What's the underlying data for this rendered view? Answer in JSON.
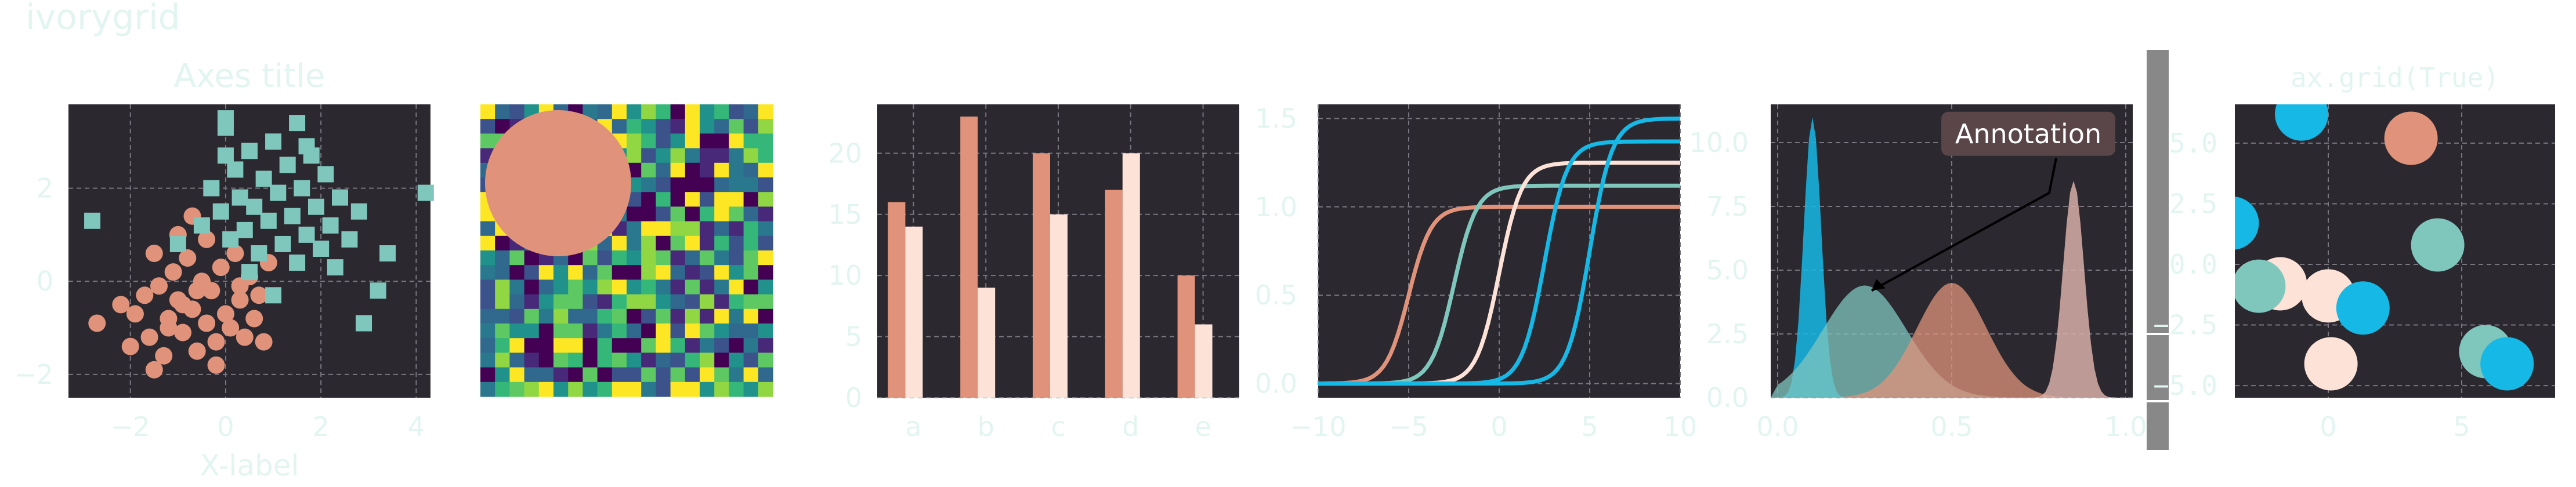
{
  "figure": {
    "suptitle": "ivorygrid"
  },
  "colors": {
    "bg": "#2b2830",
    "grid": "#7a7680",
    "text": "#e3f5f1",
    "peach": "#e0937a",
    "teal": "#7fc6bd",
    "cream": "#fde2d8",
    "cyan": "#16b8e6",
    "rose": "#d8aea8"
  },
  "chart_data": [
    {
      "type": "scatter",
      "title": "Axes title",
      "xlabel": "X-label",
      "ylabel": "",
      "xlim": [
        -3.3,
        4.3
      ],
      "ylim": [
        -2.5,
        3.8
      ],
      "xticks": [
        "−2",
        "0",
        "2",
        "4"
      ],
      "xtick_values": [
        -2,
        0,
        2,
        4
      ],
      "yticks": [
        "−2",
        "0",
        "2"
      ],
      "ytick_values": [
        -2,
        0,
        2
      ],
      "grid": true,
      "series": [
        {
          "marker": "circle",
          "points": [
            [
              -2.7,
              -0.9
            ],
            [
              -2.2,
              -0.5
            ],
            [
              -2.0,
              -1.4
            ],
            [
              -1.9,
              -0.7
            ],
            [
              -1.7,
              -0.3
            ],
            [
              -1.6,
              -1.2
            ],
            [
              -1.5,
              -1.9
            ],
            [
              -1.4,
              -0.1
            ],
            [
              -1.3,
              -1.6
            ],
            [
              -1.2,
              -0.8
            ],
            [
              -1.1,
              0.2
            ],
            [
              -1.0,
              -0.4
            ],
            [
              -0.9,
              -1.1
            ],
            [
              -0.8,
              0.5
            ],
            [
              -0.7,
              -0.6
            ],
            [
              -0.6,
              -1.5
            ],
            [
              -0.5,
              0.0
            ],
            [
              -0.4,
              -0.9
            ],
            [
              -0.3,
              -0.2
            ],
            [
              -0.2,
              -1.3
            ],
            [
              -0.1,
              0.3
            ],
            [
              0.0,
              -0.7
            ],
            [
              0.1,
              -1.0
            ],
            [
              0.2,
              0.6
            ],
            [
              0.3,
              -0.4
            ],
            [
              0.4,
              -1.2
            ],
            [
              0.5,
              0.1
            ],
            [
              0.6,
              -0.8
            ],
            [
              0.7,
              -0.3
            ],
            [
              0.8,
              -1.3
            ],
            [
              -1.0,
              1.0
            ],
            [
              -0.7,
              1.4
            ],
            [
              -0.4,
              0.9
            ],
            [
              -1.5,
              0.6
            ],
            [
              -0.2,
              -1.8
            ],
            [
              0.9,
              0.4
            ],
            [
              -0.6,
              -0.2
            ],
            [
              -1.2,
              -1.0
            ],
            [
              0.3,
              -0.1
            ],
            [
              -0.9,
              -0.5
            ]
          ]
        },
        {
          "marker": "square",
          "points": [
            [
              -2.8,
              1.3
            ],
            [
              -1.0,
              0.8
            ],
            [
              -0.5,
              1.2
            ],
            [
              -0.3,
              2.0
            ],
            [
              -0.1,
              1.5
            ],
            [
              0.0,
              3.3
            ],
            [
              0.1,
              0.9
            ],
            [
              0.2,
              2.4
            ],
            [
              0.3,
              1.8
            ],
            [
              0.4,
              1.1
            ],
            [
              0.5,
              2.8
            ],
            [
              0.6,
              1.6
            ],
            [
              0.7,
              0.6
            ],
            [
              0.8,
              2.2
            ],
            [
              0.9,
              1.3
            ],
            [
              1.0,
              3.0
            ],
            [
              1.1,
              1.9
            ],
            [
              1.2,
              0.8
            ],
            [
              1.3,
              2.5
            ],
            [
              1.4,
              1.4
            ],
            [
              1.5,
              3.4
            ],
            [
              1.6,
              2.0
            ],
            [
              1.7,
              1.0
            ],
            [
              1.8,
              2.7
            ],
            [
              1.9,
              1.6
            ],
            [
              2.0,
              0.7
            ],
            [
              2.1,
              2.3
            ],
            [
              2.2,
              1.2
            ],
            [
              2.4,
              1.8
            ],
            [
              2.6,
              0.9
            ],
            [
              2.8,
              1.5
            ],
            [
              3.2,
              -0.2
            ],
            [
              3.4,
              0.6
            ],
            [
              2.9,
              -0.9
            ],
            [
              4.2,
              1.9
            ],
            [
              1.0,
              -0.3
            ],
            [
              0.5,
              0.2
            ],
            [
              1.5,
              0.4
            ],
            [
              0.0,
              2.7
            ],
            [
              0.0,
              3.5
            ],
            [
              1.7,
              2.9
            ],
            [
              2.3,
              0.3
            ]
          ]
        }
      ]
    },
    {
      "type": "heatmap",
      "title": "",
      "colormap": "viridis",
      "rows": 20,
      "cols": 20,
      "overlay": "circle"
    },
    {
      "type": "bar",
      "title": "",
      "categories": [
        "a",
        "b",
        "c",
        "d",
        "e"
      ],
      "series": [
        {
          "values": [
            16,
            23,
            20,
            17,
            10
          ]
        },
        {
          "values": [
            14,
            9,
            15,
            20,
            6
          ]
        }
      ],
      "ylim": [
        0,
        24
      ],
      "yticks": [
        "0",
        "5",
        "10",
        "15",
        "20"
      ],
      "ytick_values": [
        0,
        5,
        10,
        15,
        20
      ],
      "grid": true
    },
    {
      "type": "line",
      "title": "",
      "xlim": [
        -10,
        10
      ],
      "ylim": [
        -0.08,
        1.58
      ],
      "xticks": [
        "−10",
        "−5",
        "0",
        "5",
        "10"
      ],
      "xtick_values": [
        -10,
        -5,
        0,
        5,
        10
      ],
      "yticks": [
        "0.0",
        "0.5",
        "1.0",
        "1.5"
      ],
      "ytick_values": [
        0,
        0.5,
        1.0,
        1.5
      ],
      "grid": true,
      "series": [
        {
          "center": -5,
          "height": 1.0
        },
        {
          "center": -2.5,
          "height": 1.12
        },
        {
          "center": 0,
          "height": 1.25
        },
        {
          "center": 2.5,
          "height": 1.37
        },
        {
          "center": 5,
          "height": 1.5
        }
      ]
    },
    {
      "type": "area",
      "title": "",
      "xlim": [
        -0.02,
        1.02
      ],
      "ylim": [
        0,
        11.5
      ],
      "xticks": [
        "0.0",
        "0.5",
        "1.0"
      ],
      "xtick_values": [
        0,
        0.5,
        1.0
      ],
      "yticks": [
        "0.0",
        "2.5",
        "5.0",
        "7.5",
        "10.0"
      ],
      "ytick_values": [
        0,
        2.5,
        5.0,
        7.5,
        10.0
      ],
      "grid": true,
      "annotation": {
        "text": "Annotation",
        "x": 0.72,
        "y": 10.3,
        "arrow_to": [
          0.27,
          4.2
        ]
      },
      "series": [
        {
          "kind": "spike",
          "center": 0.1,
          "width": 0.025,
          "peak": 11.0
        },
        {
          "kind": "hump",
          "center": 0.25,
          "width": 0.12,
          "peak": 4.4
        },
        {
          "kind": "hump",
          "center": 0.5,
          "width": 0.1,
          "peak": 4.5
        },
        {
          "kind": "spike",
          "center": 0.85,
          "width": 0.03,
          "peak": 8.5
        }
      ]
    },
    {
      "type": "scatter",
      "title": "ax.grid(True)",
      "xlim": [
        -3.5,
        8.5
      ],
      "ylim": [
        -5.5,
        6.6
      ],
      "xticks": [
        "0",
        "5"
      ],
      "xtick_values": [
        0,
        5
      ],
      "yticks": [
        "−5.0",
        "−2.5",
        "0.0",
        "2.5",
        "5.0"
      ],
      "ytick_values": [
        -5,
        -2.5,
        0,
        2.5,
        5
      ],
      "grid": true,
      "series": [
        {
          "marker": "big-circle",
          "points": [
            [
              -1.0,
              6.2,
              "cyan"
            ],
            [
              3.1,
              5.2,
              "peach"
            ],
            [
              -3.6,
              1.7,
              "cyan"
            ],
            [
              4.1,
              0.8,
              "teal"
            ],
            [
              -1.8,
              -0.8,
              "cream"
            ],
            [
              -2.6,
              -0.9,
              "teal"
            ],
            [
              0.0,
              -1.3,
              "cream"
            ],
            [
              1.3,
              -1.8,
              "cyan"
            ],
            [
              0.1,
              -4.1,
              "cream"
            ],
            [
              5.9,
              -3.6,
              "teal"
            ],
            [
              6.7,
              -4.1,
              "cyan"
            ]
          ]
        }
      ]
    }
  ],
  "colorbar": {
    "ticks": [
      "5.0",
      "2.5",
      "0.0",
      "−2.5",
      "−5.0"
    ]
  }
}
